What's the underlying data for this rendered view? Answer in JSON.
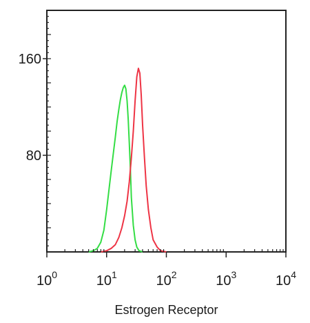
{
  "chart_data": {
    "type": "line",
    "title": "",
    "xlabel": "Estrogen Receptor",
    "ylabel": "",
    "x_scale": "log",
    "xlim": [
      1,
      10000
    ],
    "ylim": [
      0,
      200
    ],
    "x_ticks": [
      {
        "value": 1,
        "base": "10",
        "exp": "0"
      },
      {
        "value": 10,
        "base": "10",
        "exp": "1"
      },
      {
        "value": 100,
        "base": "10",
        "exp": "2"
      },
      {
        "value": 1000,
        "base": "10",
        "exp": "3"
      },
      {
        "value": 10000,
        "base": "10",
        "exp": "4"
      }
    ],
    "y_ticks": [
      {
        "value": 80,
        "label": "80"
      },
      {
        "value": 160,
        "label": "160"
      }
    ],
    "grid": false,
    "legend": "none",
    "series": [
      {
        "color": "#33dd44",
        "x": [
          5,
          6,
          7,
          8,
          9,
          10,
          11,
          12,
          13,
          14,
          15,
          16,
          17,
          18,
          19,
          20,
          21,
          22,
          23,
          24,
          25,
          26,
          28,
          30,
          32,
          35,
          40
        ],
        "y": [
          0,
          1,
          3,
          8,
          18,
          35,
          52,
          68,
          82,
          95,
          108,
          118,
          126,
          132,
          136,
          138,
          135,
          125,
          110,
          90,
          68,
          45,
          22,
          10,
          4,
          1,
          0
        ]
      },
      {
        "color": "#ee3344",
        "x": [
          8,
          10,
          12,
          14,
          16,
          18,
          20,
          22,
          24,
          26,
          28,
          30,
          32,
          34,
          36,
          38,
          40,
          43,
          46,
          50,
          55,
          60,
          70,
          80,
          100
        ],
        "y": [
          0,
          1,
          3,
          6,
          12,
          20,
          30,
          42,
          58,
          78,
          100,
          125,
          145,
          152,
          148,
          130,
          105,
          78,
          55,
          35,
          20,
          10,
          4,
          1,
          0
        ]
      }
    ]
  }
}
